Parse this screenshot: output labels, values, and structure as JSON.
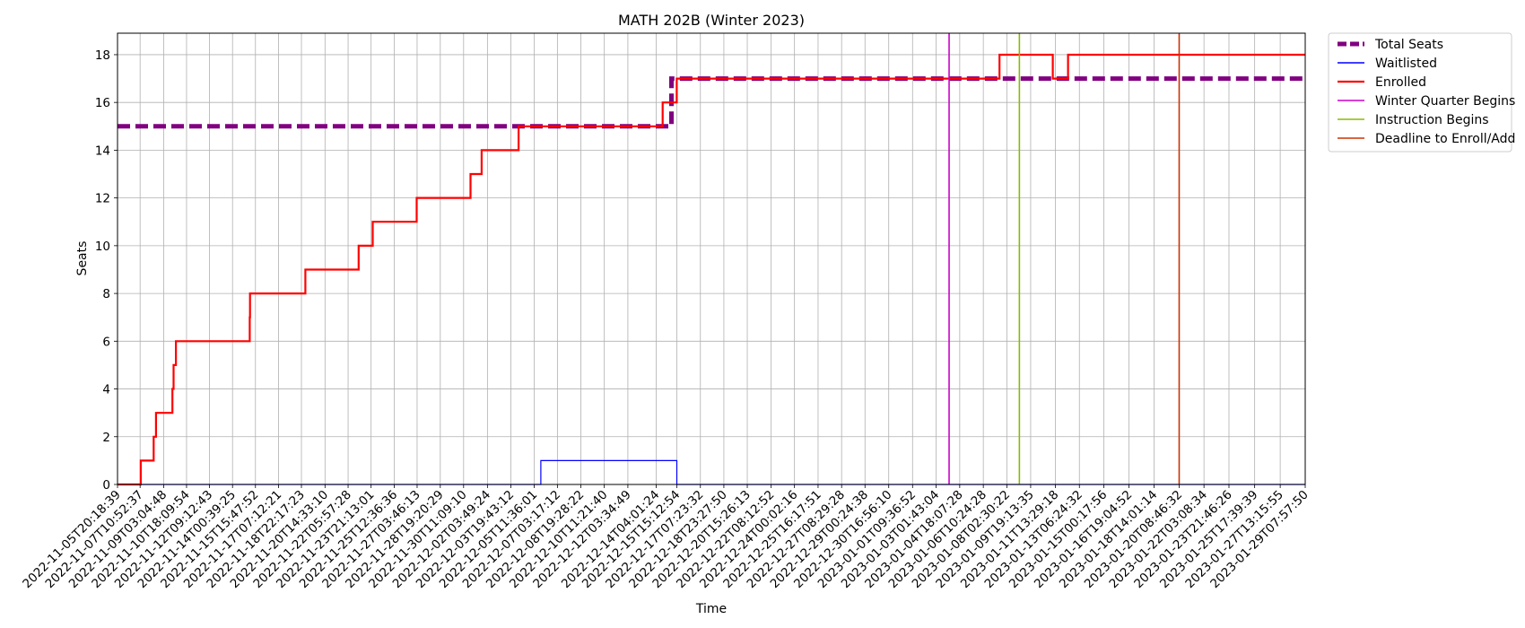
{
  "chart_data": {
    "type": "line",
    "title": "MATH 202B (Winter 2023)",
    "xlabel": "Time",
    "ylabel": "Seats",
    "ylim": [
      0,
      18.9
    ],
    "yticks": [
      0,
      2,
      4,
      6,
      8,
      10,
      12,
      14,
      16,
      18
    ],
    "grid": true,
    "legend_position": "outside-right-top",
    "x_axis": {
      "type": "datetime",
      "range": [
        "2022-11-05T20:18:39",
        "2023-01-29T07:57:50"
      ],
      "tick_labels": [
        "2022-11-05T20:18:39",
        "2022-11-07T10:52:37",
        "2022-11-09T03:04:48",
        "2022-11-10T18:09:54",
        "2022-11-12T09:12:43",
        "2022-11-14T00:39:25",
        "2022-11-15T15:47:52",
        "2022-11-17T07:12:21",
        "2022-11-18T22:17:23",
        "2022-11-20T14:33:10",
        "2022-11-22T05:57:28",
        "2022-11-23T21:13:01",
        "2022-11-25T12:36:36",
        "2022-11-27T03:46:13",
        "2022-11-28T19:20:29",
        "2022-11-30T11:09:10",
        "2022-12-02T03:49:24",
        "2022-12-03T19:43:12",
        "2022-12-05T11:36:01",
        "2022-12-07T03:17:12",
        "2022-12-08T19:28:22",
        "2022-12-10T11:21:40",
        "2022-12-12T03:34:49",
        "2022-12-14T04:01:24",
        "2022-12-15T15:12:54",
        "2022-12-17T07:23:32",
        "2022-12-18T23:27:50",
        "2022-12-20T15:26:13",
        "2022-12-22T08:12:52",
        "2022-12-24T00:02:16",
        "2022-12-25T16:17:51",
        "2022-12-27T08:29:28",
        "2022-12-29T00:24:38",
        "2022-12-30T16:56:10",
        "2023-01-01T09:36:52",
        "2023-01-03T01:43:04",
        "2023-01-04T18:07:28",
        "2023-01-06T10:24:28",
        "2023-01-08T02:30:22",
        "2023-01-09T19:13:35",
        "2023-01-11T13:29:18",
        "2023-01-13T06:24:32",
        "2023-01-15T00:17:56",
        "2023-01-16T19:04:52",
        "2023-01-18T14:01:14",
        "2023-01-20T08:46:32",
        "2023-01-22T03:08:34",
        "2023-01-23T21:46:26",
        "2023-01-25T17:39:39",
        "2023-01-27T13:15:55",
        "2023-01-29T07:57:50"
      ]
    },
    "series": [
      {
        "name": "Total Seats",
        "style": "dashed-thick",
        "color": "#800080",
        "x": [
          "2022-11-05T20:18:39",
          "2022-12-15T06:00:00",
          "2022-12-15T06:00:00",
          "2023-01-29T07:57:50"
        ],
        "values": [
          15,
          15,
          17,
          17
        ]
      },
      {
        "name": "Waitlisted",
        "style": "step",
        "color": "#0000ff",
        "x": [
          "2022-11-05T20:18:39",
          "2022-12-05T23:00:00",
          "2022-12-05T23:00:00",
          "2022-12-15T15:12:54",
          "2022-12-15T15:12:54",
          "2023-01-29T07:57:50"
        ],
        "values": [
          0,
          0,
          1,
          1,
          0,
          0
        ]
      },
      {
        "name": "Enrolled",
        "style": "step",
        "color": "#ff0000",
        "x": [
          "2022-11-05T20:18:39",
          "2022-11-07T12:00:00",
          "2022-11-08T10:00:00",
          "2022-11-08T14:00:00",
          "2022-11-09T18:00:00",
          "2022-11-09T20:00:00",
          "2022-11-10T00:00:00",
          "2022-11-10T03:00:00",
          "2022-11-15T06:00:00",
          "2022-11-15T06:30:00",
          "2022-11-19T05:00:00",
          "2022-11-23T00:00:00",
          "2022-11-24T00:00:00",
          "2022-11-27T03:00:00",
          "2022-11-30T23:00:00",
          "2022-12-01T18:00:00",
          "2022-12-04T09:00:00",
          "2022-12-14T15:00:00",
          "2022-12-15T15:00:00",
          "2023-01-07T14:00:00",
          "2023-01-11T09:00:00",
          "2023-01-12T11:00:00",
          "2023-01-29T07:57:50"
        ],
        "values": [
          0,
          1,
          2,
          3,
          4,
          5,
          6,
          6,
          7,
          8,
          9,
          10,
          11,
          12,
          13,
          14,
          15,
          16,
          17,
          18,
          17,
          18,
          18
        ]
      },
      {
        "name": "Winter Quarter Begins",
        "style": "vline",
        "color": "#cc00cc",
        "x": "2023-01-04T00:00:00"
      },
      {
        "name": "Instruction Begins",
        "style": "vline",
        "color": "#88bb00",
        "x": "2023-01-09T00:00:00"
      },
      {
        "name": "Deadline to Enroll/Add",
        "style": "vline",
        "color": "#cc3300",
        "x": "2023-01-20T08:46:32"
      }
    ]
  }
}
